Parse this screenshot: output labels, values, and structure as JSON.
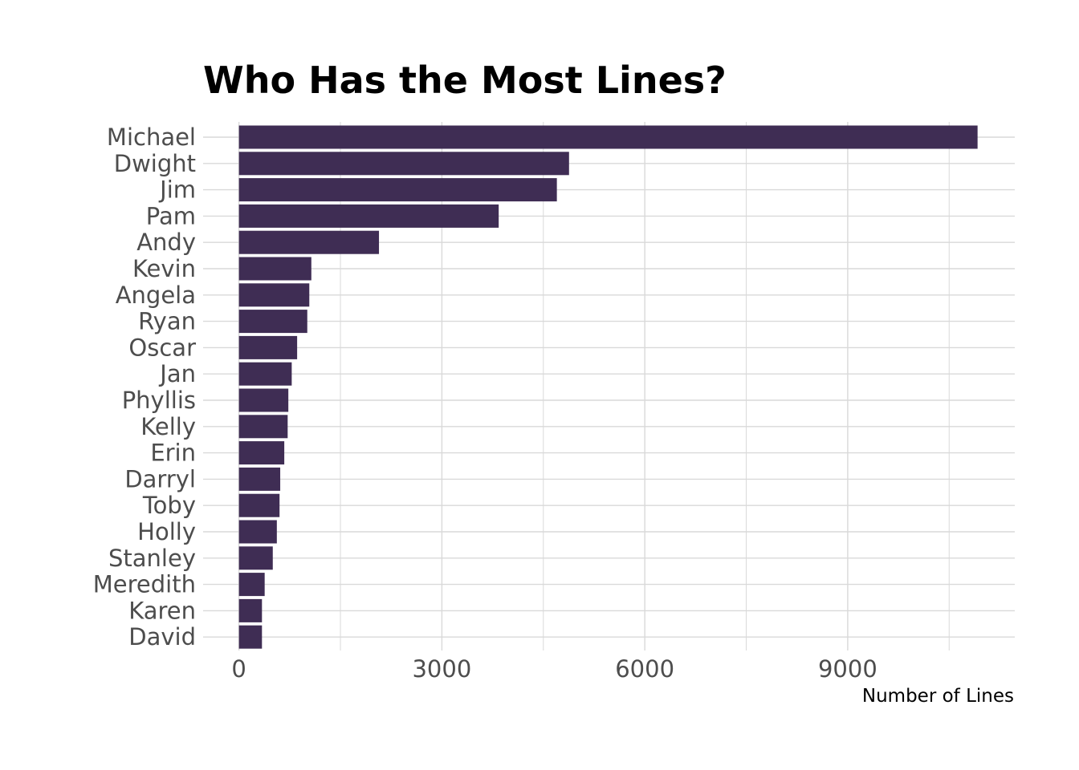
{
  "chart_data": {
    "type": "bar",
    "orientation": "horizontal",
    "title": "Who Has the Most Lines?",
    "xlabel": "Number of Lines",
    "ylabel": "",
    "categories": [
      "Michael",
      "Dwight",
      "Jim",
      "Pam",
      "Andy",
      "Kevin",
      "Angela",
      "Ryan",
      "Oscar",
      "Jan",
      "Phyllis",
      "Kelly",
      "Erin",
      "Darryl",
      "Toby",
      "Holly",
      "Stanley",
      "Meredith",
      "Karen",
      "David"
    ],
    "values": [
      10920,
      4880,
      4700,
      3840,
      2070,
      1070,
      1040,
      1010,
      860,
      780,
      730,
      720,
      670,
      610,
      600,
      560,
      500,
      380,
      340,
      340
    ],
    "xlim": [
      -530,
      11470
    ],
    "xticks": [
      0,
      3000,
      6000,
      9000
    ],
    "xtick_labels": [
      "0",
      "3000",
      "6000",
      "9000"
    ],
    "grid": true,
    "legend": "none",
    "bar_color": "#3f2d54",
    "grid_color": "#d9d9d9",
    "text_color": "#4d4d4d"
  }
}
